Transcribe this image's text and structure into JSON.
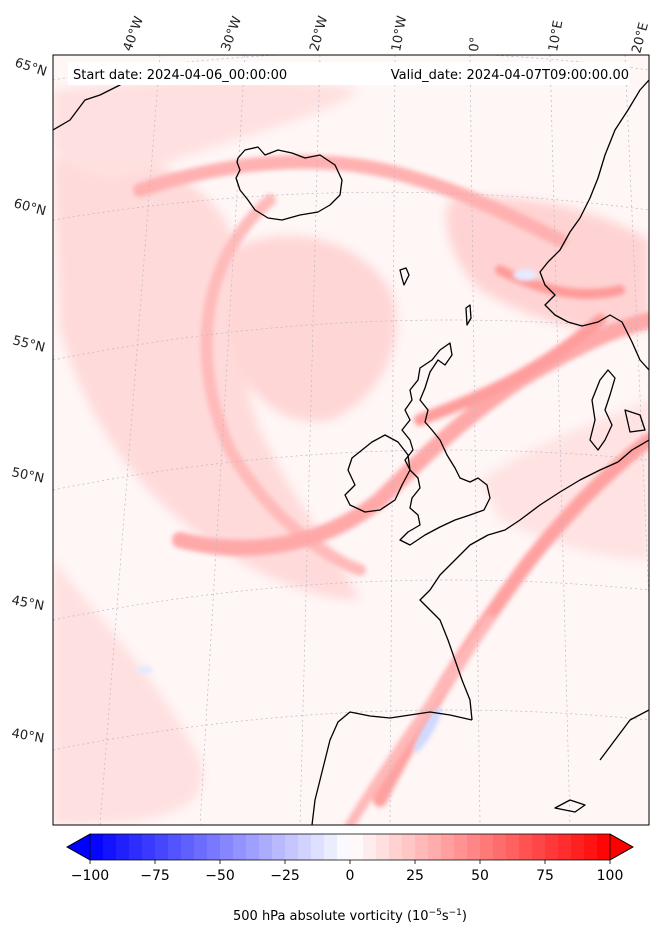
{
  "header": {
    "start_date": "Start date: 2024-04-06_00:00:00",
    "valid_date": "Valid_date: 2024-04-07T09:00:00.00"
  },
  "map": {
    "longitude_labels": [
      "40°W",
      "30°W",
      "20°W",
      "10°W",
      "0°",
      "10°E",
      "20°E"
    ],
    "latitude_labels": [
      "65°N",
      "60°N",
      "55°N",
      "50°N",
      "45°N",
      "40°N"
    ],
    "field_colors": {
      "background": "#fff6f6",
      "light_red": "#ffd9d9",
      "medium_red": "#ffb3b3",
      "strong_red": "#ff8a8a",
      "light_blue": "#d6e0ff",
      "coastline": "#000000"
    }
  },
  "colorbar": {
    "title_prefix": "500 hPa absolute vorticity (10",
    "title_exp1": "−5",
    "title_mid": "s",
    "title_exp2": "−1",
    "title_suffix": ")",
    "min": -100,
    "max": 100,
    "ticks": [
      "−100",
      "−75",
      "−50",
      "−25",
      "0",
      "25",
      "50",
      "75",
      "100"
    ],
    "colors": {
      "negative_end": "#0000ff",
      "center": "#ffffff",
      "positive_end": "#ff0000"
    }
  }
}
